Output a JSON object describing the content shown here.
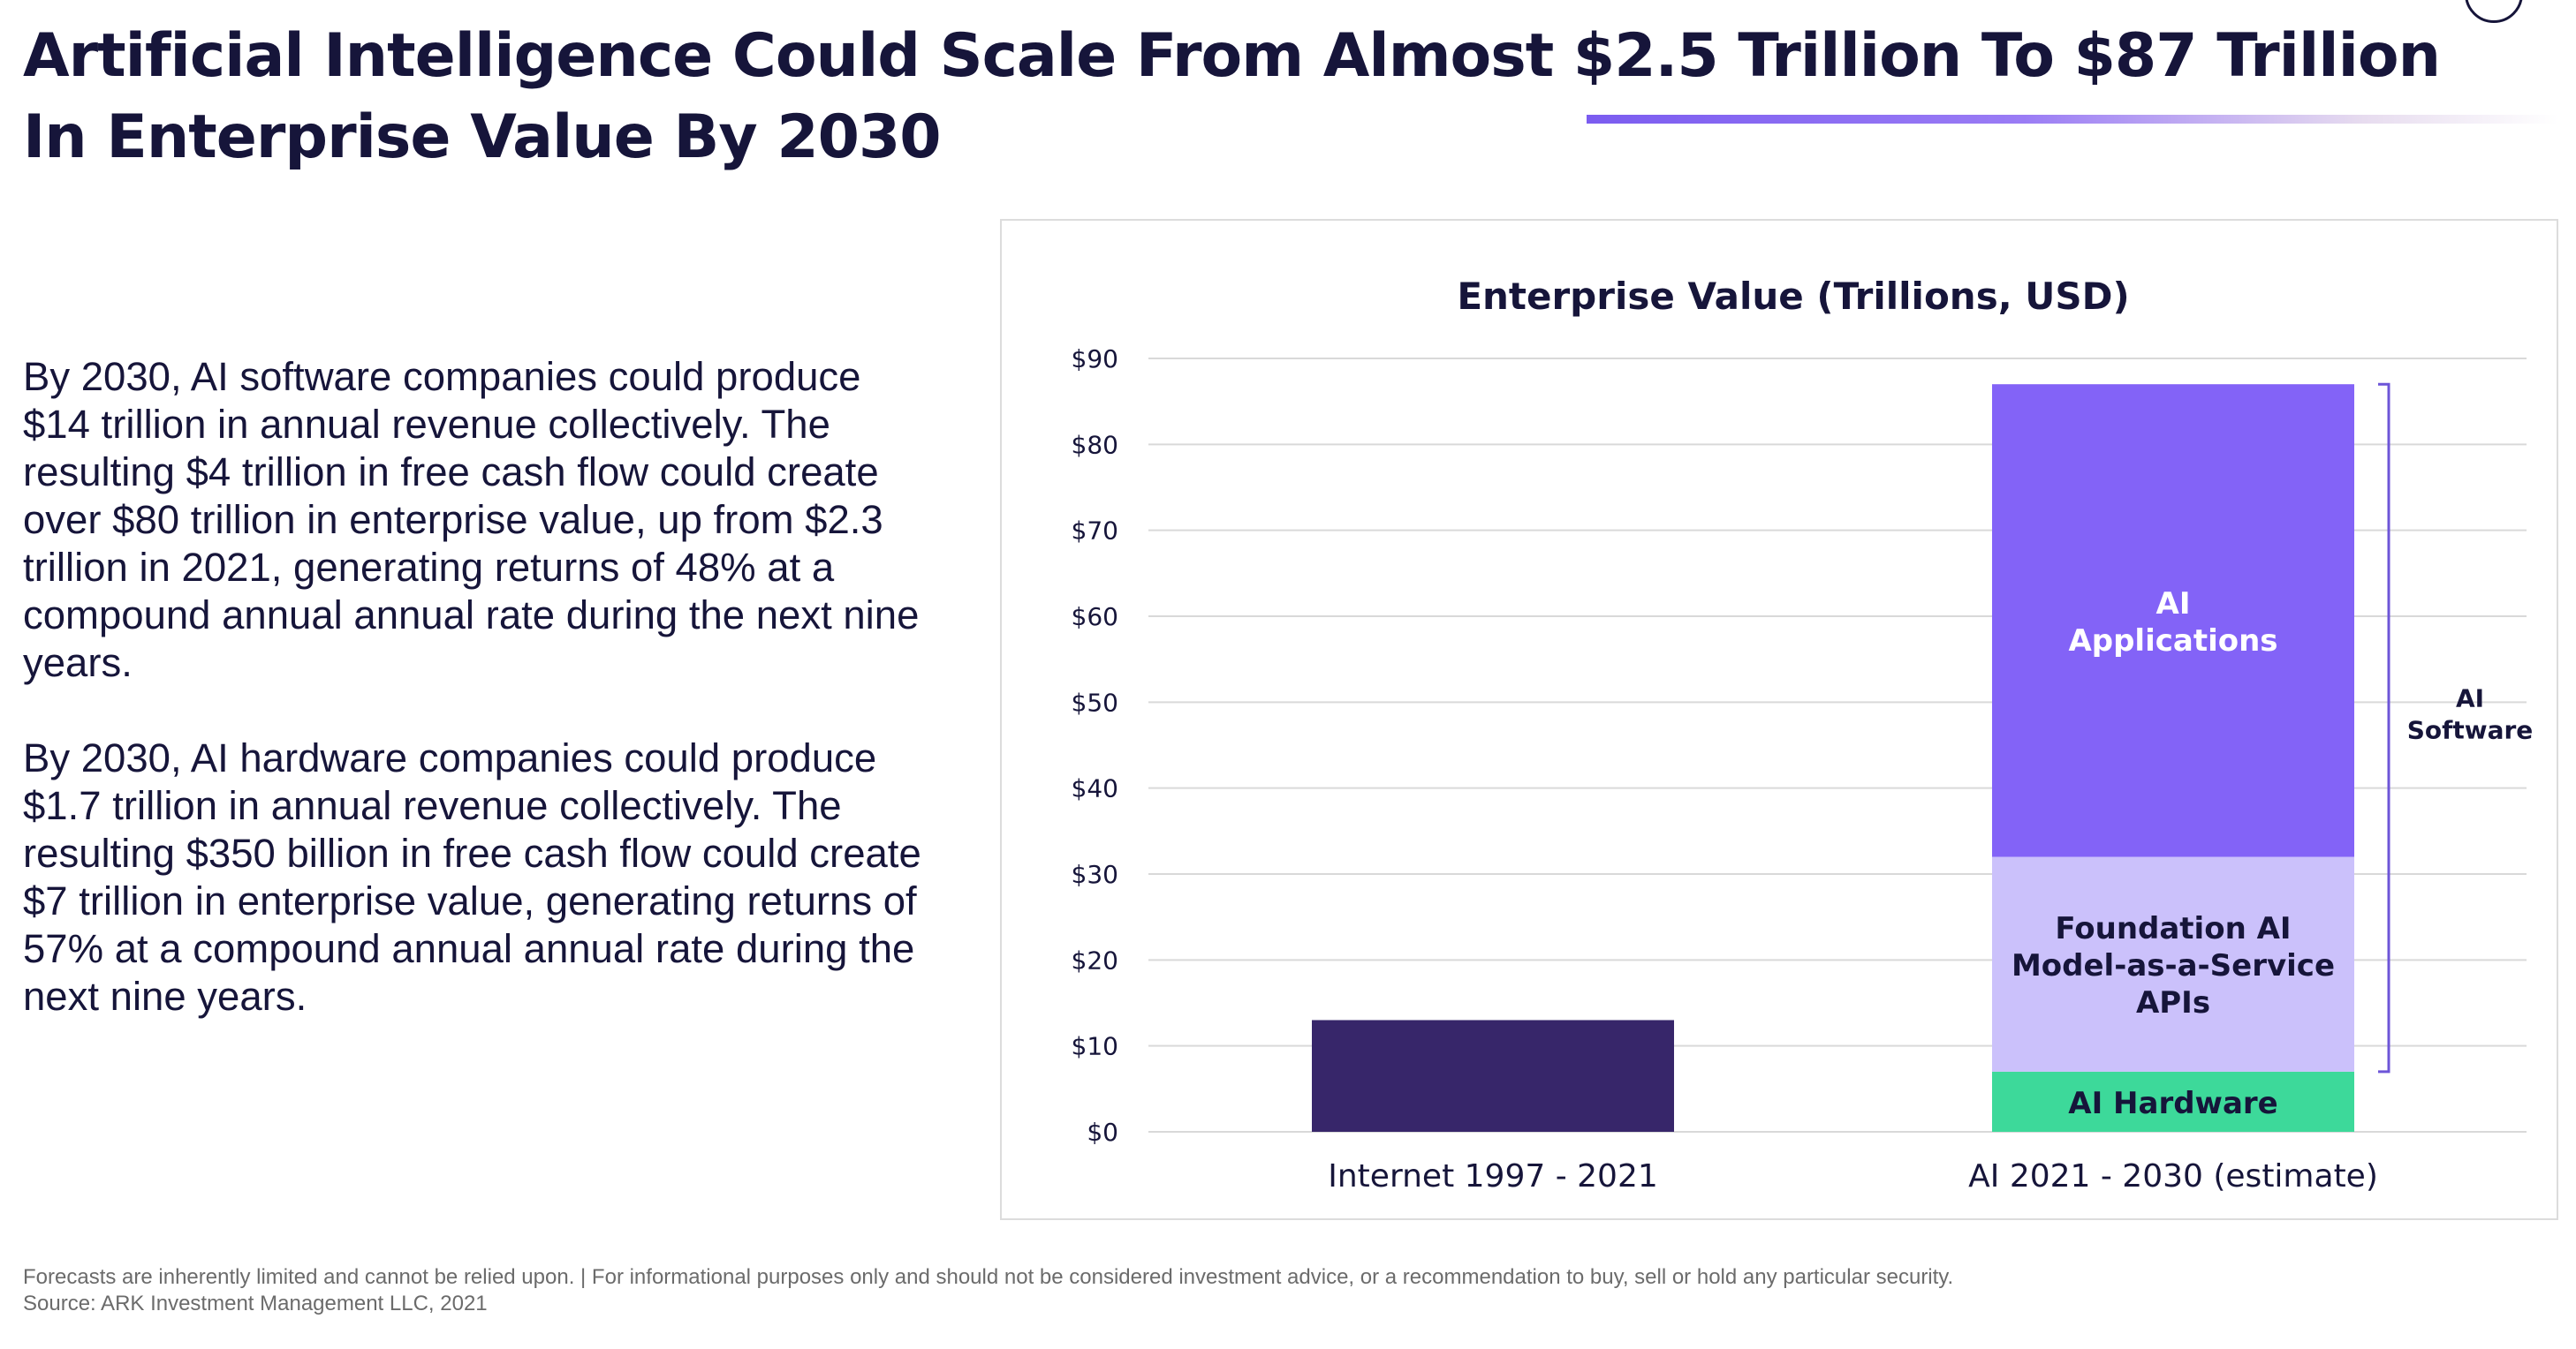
{
  "page": {
    "title_line1": "Artificial Intelligence Could Scale From Almost $2.5 Trillion To $87 Trillion",
    "title_line2": "In Enterprise Value By 2030",
    "paragraphs": [
      "By 2030, AI software companies could produce $14 trillion in annual revenue collectively. The resulting $4 trillion in free cash flow could create over $80 trillion in enterprise value, up from $2.3 trillion in 2021, generating returns of 48% at a compound annual annual rate during the next nine years.",
      "By 2030, AI hardware companies could produce $1.7 trillion in annual revenue collectively. The resulting $350 billion in free cash flow could create $7 trillion in enterprise value, generating returns of 57% at a compound annual annual rate during the next nine years."
    ],
    "footer_disclaimer": "Forecasts are inherently limited and cannot be relied upon. | For informational purposes only and should not be considered investment advice, or a recommendation to buy, sell or hold any particular security.",
    "footer_source": "Source: ARK Investment Management LLC, 2021"
  },
  "chart_data": {
    "type": "bar",
    "stacked": true,
    "title": "Enterprise Value (Trillions, USD)",
    "xlabel": "",
    "ylabel": "",
    "ylim": [
      0,
      90
    ],
    "yticks": [
      0,
      10,
      20,
      30,
      40,
      50,
      60,
      70,
      80,
      90
    ],
    "ytick_labels": [
      "$0",
      "$10",
      "$20",
      "$30",
      "$40",
      "$50",
      "$60",
      "$70",
      "$80",
      "$90"
    ],
    "grid": true,
    "categories": [
      "Internet 1997 - 2021",
      "AI 2021 - 2030 (estimate)"
    ],
    "series": [
      {
        "name": "Internet",
        "values": [
          13,
          0
        ],
        "color": "#37266a",
        "label_lines": []
      },
      {
        "name": "AI Hardware",
        "values": [
          0,
          7
        ],
        "color": "#3dd99a",
        "label_lines": [
          "AI Hardware"
        ],
        "label_color": "#16153a"
      },
      {
        "name": "Foundation AI Model-as-a-Service APIs",
        "values": [
          0,
          25
        ],
        "color": "#cbc1fb",
        "label_lines": [
          "Foundation AI",
          "Model-as-a-Service",
          "APIs"
        ],
        "label_color": "#16153a"
      },
      {
        "name": "AI Applications",
        "values": [
          0,
          55
        ],
        "color": "#8363f7",
        "label_lines": [
          "AI",
          "Applications"
        ],
        "label_color": "#ffffff"
      }
    ],
    "bracket": {
      "label_lines": [
        "AI",
        "Software"
      ],
      "from": 7,
      "to": 87
    }
  }
}
